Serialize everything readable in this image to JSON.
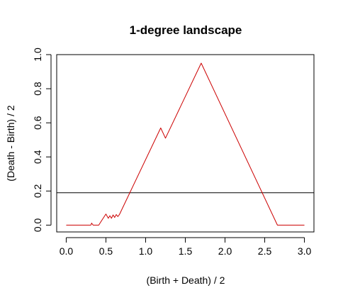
{
  "chart_data": {
    "type": "line",
    "title": "1-degree landscape",
    "xlabel": "(Birth + Death) / 2",
    "ylabel": "(Death - Birth) / 2",
    "xlim": [
      -0.12,
      3.12
    ],
    "ylim": [
      -0.04,
      1.0
    ],
    "x_ticks": [
      0.0,
      0.5,
      1.0,
      1.5,
      2.0,
      2.5,
      3.0
    ],
    "x_tick_labels": [
      "0.0",
      "0.5",
      "1.0",
      "1.5",
      "2.0",
      "2.5",
      "3.0"
    ],
    "y_ticks": [
      0.0,
      0.2,
      0.4,
      0.6,
      0.8,
      1.0
    ],
    "y_tick_labels": [
      "0.0",
      "0.2",
      "0.4",
      "0.6",
      "0.8",
      "1.0"
    ],
    "grid": false,
    "series": [
      {
        "color": "#cc0000",
        "x": [
          0.0,
          0.31,
          0.32,
          0.33,
          0.34,
          0.41,
          0.43,
          0.5,
          0.53,
          0.55,
          0.57,
          0.59,
          0.61,
          0.63,
          0.65,
          0.67,
          1.19,
          1.25,
          1.7,
          2.66,
          3.0
        ],
        "y": [
          0.0,
          0.0,
          0.012,
          0.005,
          0.0,
          0.0,
          0.015,
          0.065,
          0.04,
          0.055,
          0.04,
          0.06,
          0.045,
          0.062,
          0.05,
          0.062,
          0.57,
          0.51,
          0.95,
          0.0,
          0.0
        ]
      }
    ],
    "hlines": [
      {
        "y": 0.19,
        "color": "#000000"
      }
    ]
  }
}
